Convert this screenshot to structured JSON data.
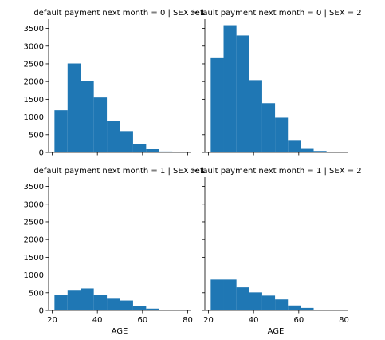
{
  "chart_data": {
    "type": "bar",
    "layout": "facet-grid 2x2",
    "bar_color": "#1f77b4",
    "x_ticks": [
      20,
      40,
      60,
      80
    ],
    "y_ticks": [
      0,
      500,
      1000,
      1500,
      2000,
      2500,
      3000,
      3500
    ],
    "xlim": [
      18.4,
      81.6
    ],
    "ylim": [
      0,
      3760
    ],
    "xlabel": "AGE",
    "ylabel": "",
    "grid": false,
    "panels": [
      {
        "title": "default payment next month = 0 | SEX = 1",
        "bin_edges": [
          21,
          26.8,
          32.6,
          38.4,
          44.2,
          50,
          55.8,
          61.6,
          67.4,
          73.2,
          79
        ],
        "values": [
          1190,
          2510,
          2020,
          1550,
          880,
          600,
          240,
          90,
          25,
          5
        ]
      },
      {
        "title": "default payment next month = 0 | SEX = 2",
        "bin_edges": [
          21,
          26.7,
          32.4,
          38.1,
          43.8,
          49.5,
          55.2,
          60.9,
          66.6,
          72.3,
          78
        ],
        "values": [
          2660,
          3590,
          3300,
          2040,
          1390,
          980,
          330,
          100,
          40,
          15
        ]
      },
      {
        "title": "default payment next month = 1 | SEX = 1",
        "bin_edges": [
          21,
          26.8,
          32.6,
          38.4,
          44.2,
          50,
          55.8,
          61.6,
          67.4,
          73.2,
          79
        ],
        "values": [
          440,
          580,
          620,
          440,
          330,
          280,
          120,
          50,
          15,
          5
        ]
      },
      {
        "title": "default payment next month = 1 | SEX = 2",
        "bin_edges": [
          21,
          26.7,
          32.4,
          38.1,
          43.8,
          49.5,
          55.2,
          60.9,
          66.6,
          72.3,
          78
        ],
        "values": [
          870,
          870,
          650,
          510,
          420,
          310,
          140,
          70,
          20,
          5
        ]
      }
    ]
  }
}
